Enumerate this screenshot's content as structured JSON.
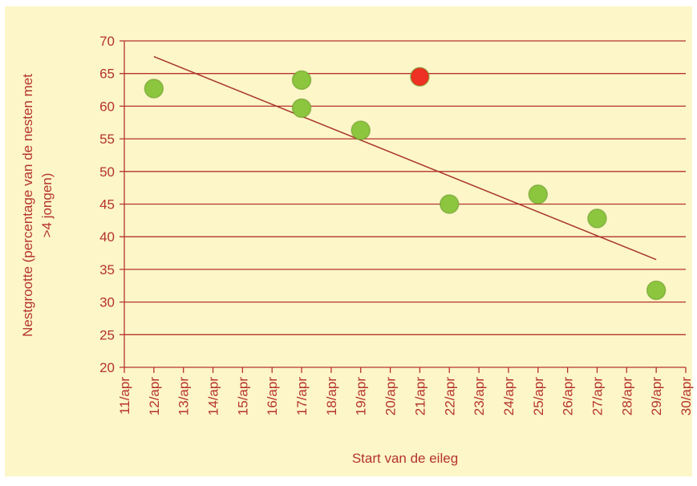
{
  "chart_data": {
    "type": "scatter",
    "xlabel": "Start van de eileg",
    "ylabel": [
      "Nestgrootte (percentage van de nesten met",
      ">4 jongen)"
    ],
    "xlim": [
      11,
      30
    ],
    "xticks": [
      {
        "value": 11,
        "label": "11/apr"
      },
      {
        "value": 12,
        "label": "12/apr"
      },
      {
        "value": 13,
        "label": "13/apr"
      },
      {
        "value": 14,
        "label": "14/apr"
      },
      {
        "value": 15,
        "label": "15/apr"
      },
      {
        "value": 16,
        "label": "16/apr"
      },
      {
        "value": 17,
        "label": "17/apr"
      },
      {
        "value": 18,
        "label": "18/apr"
      },
      {
        "value": 19,
        "label": "19/apr"
      },
      {
        "value": 20,
        "label": "20/apr"
      },
      {
        "value": 21,
        "label": "21/apr"
      },
      {
        "value": 22,
        "label": "22/apr"
      },
      {
        "value": 23,
        "label": "23/apr"
      },
      {
        "value": 24,
        "label": "24/apr"
      },
      {
        "value": 25,
        "label": "25/apr"
      },
      {
        "value": 26,
        "label": "26/apr"
      },
      {
        "value": 27,
        "label": "27/apr"
      },
      {
        "value": 28,
        "label": "28/apr"
      },
      {
        "value": 29,
        "label": "29/apr"
      },
      {
        "value": 30,
        "label": "30/apr"
      }
    ],
    "ylim": [
      20,
      70
    ],
    "yticks": [
      20,
      25,
      30,
      35,
      40,
      45,
      50,
      55,
      60,
      65,
      70
    ],
    "grid": true,
    "series": [
      {
        "color": "#8cc63f",
        "x": [
          12,
          17,
          17,
          19,
          22,
          25,
          27,
          29
        ],
        "values": [
          62.7,
          64,
          59.7,
          56.3,
          45,
          46.5,
          42.8,
          31.8
        ]
      },
      {
        "color": "#ee3124",
        "x": [
          21
        ],
        "values": [
          64.5
        ]
      }
    ],
    "trendline": {
      "color": "#a8352c",
      "x": [
        12,
        29
      ],
      "values": [
        67.6,
        36.5
      ]
    }
  }
}
